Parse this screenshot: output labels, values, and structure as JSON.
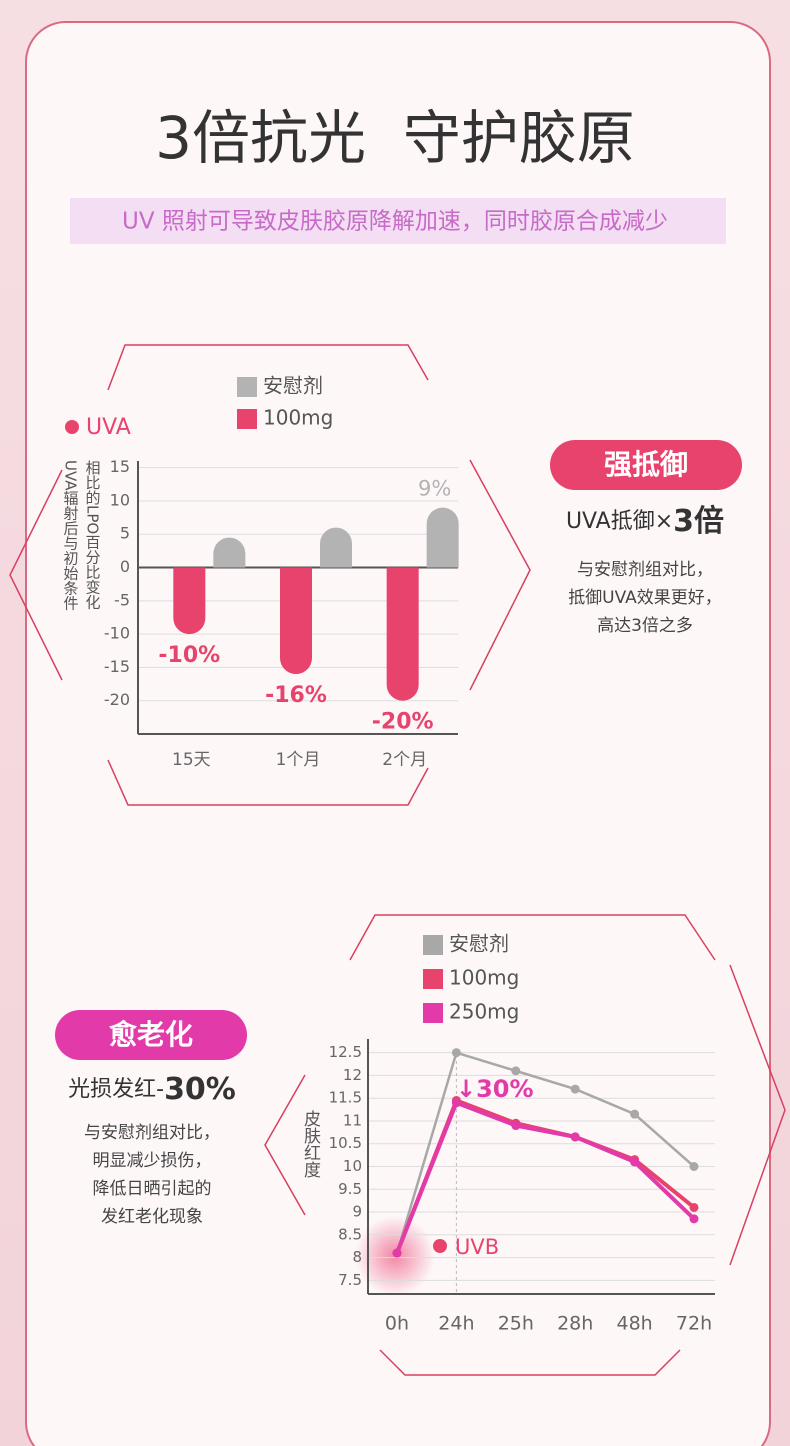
{
  "header": {
    "title": "3倍抗光  守护胶原",
    "subtitle": "UV 照射可导致皮肤胶原降解加速，同时胶原合成减少"
  },
  "callouts": [
    {
      "badge": "强抵御",
      "strength": [
        "UVA抵御×",
        "3倍"
      ],
      "lines": [
        "与安慰剂组对比，",
        "抵御UVA效果更好，",
        "高达3倍之多"
      ]
    },
    {
      "badge": "愈老化",
      "strength": [
        "光损发红-",
        "30%"
      ],
      "lines": [
        "与安慰剂组对比，",
        "明显减少损伤，",
        "降低日晒引起的",
        "发红老化现象"
      ]
    }
  ],
  "chart_data": [
    {
      "type": "bar",
      "annotations": [
        "UVA"
      ],
      "ylabel": [
        "相比的LPO百分比变化",
        "UVA辐射后与初始条件"
      ],
      "categories": [
        "15天",
        "1个月",
        "2个月"
      ],
      "series": [
        {
          "name": "安慰剂",
          "color": "#b3b3b3",
          "values": [
            4.5,
            6,
            9
          ],
          "value_labels": [
            null,
            null,
            "9%"
          ]
        },
        {
          "name": "100mg",
          "color": "#e8436d",
          "values": [
            -10,
            -16,
            -20
          ],
          "value_labels": [
            "-10%",
            "-16%",
            "-20%"
          ]
        }
      ],
      "ylim": [
        -25,
        16
      ],
      "yticks": [
        15,
        10,
        5,
        0,
        -5,
        -10,
        -15,
        -20
      ],
      "grid": true
    },
    {
      "type": "line",
      "annotations": [
        "↓30%",
        "UVB"
      ],
      "ylabel": "皮肤红度",
      "categories": [
        "0h",
        "24h",
        "25h",
        "28h",
        "48h",
        "72h"
      ],
      "series": [
        {
          "name": "安慰剂",
          "color": "#a8a8a8",
          "values": [
            8.1,
            12.5,
            12.1,
            11.7,
            11.15,
            10
          ]
        },
        {
          "name": "100mg",
          "color": "#e8436d",
          "values": [
            8.1,
            11.45,
            10.95,
            10.65,
            10.15,
            9.1
          ]
        },
        {
          "name": "250mg",
          "color": "#e23aa8",
          "values": [
            8.1,
            11.4,
            10.9,
            10.65,
            10.1,
            8.85
          ]
        }
      ],
      "ylim": [
        7.2,
        12.8
      ],
      "yticks": [
        7.5,
        8,
        8.5,
        9,
        9.5,
        10,
        10.5,
        11,
        11.5,
        12,
        12.5
      ],
      "grid": true
    }
  ]
}
